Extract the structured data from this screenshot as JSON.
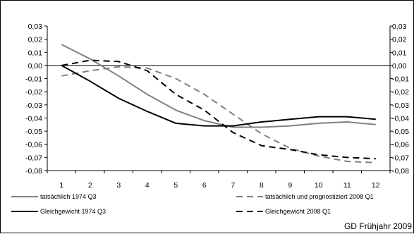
{
  "chart_data": {
    "type": "line",
    "x": [
      1,
      2,
      3,
      4,
      5,
      6,
      7,
      8,
      9,
      10,
      11,
      12
    ],
    "ylim": [
      -0.08,
      0.03
    ],
    "yticks": [
      "0,03",
      "0,02",
      "0,01",
      "0,00",
      "-0,01",
      "-0,02",
      "-0,03",
      "-0,04",
      "-0,05",
      "-0,06",
      "-0,07",
      "-0,08"
    ],
    "xticks": [
      "1",
      "2",
      "3",
      "4",
      "5",
      "6",
      "7",
      "8",
      "9",
      "10",
      "11",
      "12"
    ],
    "grid": false,
    "zero_line": true,
    "secondary_y_axis": true,
    "legend_position": "bottom",
    "series": [
      {
        "name": "tatsächlich 1974 Q3",
        "color": "#808080",
        "dash": "solid",
        "values": [
          0.016,
          0.005,
          -0.008,
          -0.022,
          -0.034,
          -0.042,
          -0.047,
          -0.047,
          -0.046,
          -0.044,
          -0.043,
          -0.045
        ]
      },
      {
        "name": "tatsächlich und prognostiziert 2008 Q1",
        "color": "#808080",
        "dash": "dashed",
        "values": [
          -0.008,
          -0.004,
          -0.001,
          -0.002,
          -0.01,
          -0.022,
          -0.037,
          -0.052,
          -0.063,
          -0.069,
          -0.073,
          -0.074
        ]
      },
      {
        "name": "Gleichgewicht 1974 Q3",
        "color": "#000000",
        "dash": "solid",
        "values": [
          0.0,
          -0.012,
          -0.025,
          -0.035,
          -0.044,
          -0.046,
          -0.046,
          -0.043,
          -0.041,
          -0.039,
          -0.039,
          -0.041
        ]
      },
      {
        "name": "Gleichgewicht 2008 Q1",
        "color": "#000000",
        "dash": "dashed",
        "values": [
          0.0,
          0.004,
          0.003,
          -0.004,
          -0.022,
          -0.034,
          -0.051,
          -0.061,
          -0.064,
          -0.068,
          -0.07,
          -0.071
        ]
      }
    ]
  },
  "source": "GD Frühjahr 2009"
}
